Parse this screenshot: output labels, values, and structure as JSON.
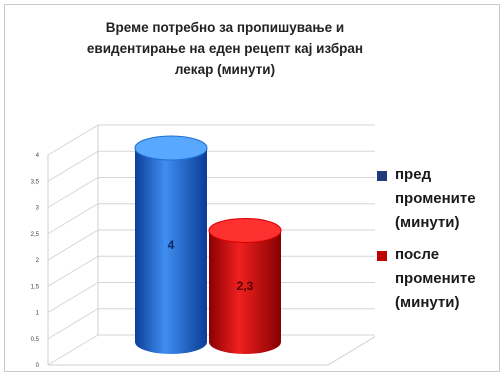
{
  "chart_data": {
    "type": "bar",
    "title_lines": [
      "Време потребно за пропишување и",
      "евидентирање на еден рецепт кај избран",
      "лекар (минути)"
    ],
    "series": [
      {
        "name": "пред промените (минути)",
        "legend_lines": [
          "пред",
          "промените",
          "(минути)"
        ],
        "value": 4,
        "label": "4",
        "color": "#1f6fd1",
        "legend_color": "#1f3b7a"
      },
      {
        "name": "после промените (минути)",
        "legend_lines": [
          "после",
          "промените",
          "(минути)"
        ],
        "value": 2.3,
        "label": "2,3",
        "color": "#d90000",
        "legend_color": "#c00000"
      }
    ],
    "yticks": [
      "0",
      "0,5",
      "1",
      "1,5",
      "2",
      "2,5",
      "3",
      "3,5",
      "4"
    ],
    "ylim": [
      0,
      4
    ],
    "grid": true,
    "legend_position": "right"
  }
}
